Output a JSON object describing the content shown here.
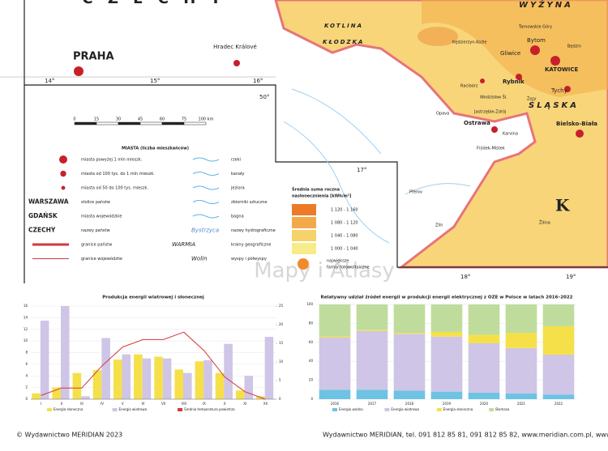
{
  "map": {
    "country_top": "C Z E C H Y",
    "cities": [
      "PRAHA",
      "Hradec Králové",
      "Bytom",
      "Gliwice",
      "KATOWICE",
      "Rybnik",
      "Tychy",
      "Racibórz",
      "Kędzierzyn-Koźle",
      "Opava",
      "Ostrawa",
      "Karvina",
      "Frýdek-Místek",
      "Bielsko-Biała",
      "Wodzisław Śl.",
      "Jastrzębie-Zdrój",
      "Żory",
      "Tarnowskie Góry",
      "Będzin",
      "Přerov",
      "Zlín",
      "Žilina"
    ],
    "regions": [
      "KOTLINA",
      "KŁODZKA",
      "WYŻYNA",
      "ŚLĄSKA",
      "K"
    ],
    "degrees": [
      "14°",
      "15°",
      "16°",
      "50°",
      "17°",
      "18°",
      "19°"
    ],
    "watermark": "Mapy i Atlasy"
  },
  "legend": {
    "scale": [
      "0",
      "15",
      "30",
      "45",
      "60",
      "75",
      "100 km"
    ],
    "cities_title": "MIASTA (liczba mieszkańców)",
    "left": [
      [
        "",
        "miasta powyżej 1 mln mieszk."
      ],
      [
        "",
        "miasta od 100 tys. do 1 mln mieszk."
      ],
      [
        "",
        "miasta od 50 do 100 tys. mieszk."
      ],
      [
        "WARSZAWA",
        "stolice państw"
      ],
      [
        "GDAŃSK",
        "miasta wojewódzkie"
      ],
      [
        "CZECHY",
        "nazwy państw"
      ],
      [
        "",
        "granice państw"
      ],
      [
        "",
        "granice województw"
      ]
    ],
    "right": [
      [
        "",
        "rzeki"
      ],
      [
        "",
        "kanały"
      ],
      [
        "",
        "jeziora"
      ],
      [
        "",
        "zbiorniki sztuczne"
      ],
      [
        "",
        "bagna"
      ],
      [
        "Bystrzyca",
        "nazwy hydrograficzne"
      ],
      [
        "WARMIA",
        "krainy geograficzne"
      ],
      [
        "Wolin",
        "wyspy i półwyspy"
      ]
    ],
    "solar_title": [
      "Średnia suma roczna",
      "nasłonecznienia [kWh/m²]"
    ],
    "solar_classes": [
      "1 120 - 1 160",
      "1 080 - 1 120",
      "1 040 - 1 080",
      "1 000 - 1 040"
    ],
    "farms": [
      "największe",
      "farmy fotowoltaiczne"
    ]
  },
  "chart_data": [
    {
      "type": "bar",
      "title": "Produkcja energii wiatrowej i słonecznej",
      "categories": [
        "I",
        "II",
        "III",
        "IV",
        "V",
        "VI",
        "VII",
        "VIII",
        "IX",
        "X",
        "XI",
        "XII"
      ],
      "series": [
        {
          "name": "Energia słoneczna",
          "color": "#f5e04a",
          "values": [
            1,
            2,
            4.5,
            5,
            6.8,
            7.7,
            7.3,
            5.1,
            6.5,
            4.5,
            1.5,
            0.5
          ]
        },
        {
          "name": "Energia wiatrowa",
          "color": "#cfc5e6",
          "values": [
            13.5,
            16,
            0.5,
            10.5,
            7.7,
            7,
            7,
            4.5,
            6.7,
            9.5,
            4,
            10.7
          ]
        },
        {
          "name": "Średnia temperatura powietrza",
          "color": "#d23a3a",
          "axis": "y2",
          "values": [
            1,
            3,
            3,
            9,
            14,
            16,
            16,
            18,
            13,
            6,
            2,
            0
          ]
        }
      ],
      "ylim": [
        0,
        16
      ],
      "yticks": [
        0,
        2,
        4,
        6,
        8,
        10,
        12,
        14,
        16
      ],
      "y2lim": [
        0,
        25
      ],
      "y2ticks": [
        0,
        5,
        10,
        15,
        20,
        25
      ]
    },
    {
      "type": "stacked_bar",
      "title": "Relatywny udział źródeł energii w produkcji energii elektrycznej z OZE w Polsce w latach 2016–2022",
      "categories": [
        "2016",
        "2017",
        "2018",
        "2019",
        "2020",
        "2021",
        "2022"
      ],
      "series": [
        {
          "name": "Energia wodna",
          "color": "#6ec3e4",
          "values": [
            10,
            10,
            9,
            8,
            7,
            6,
            5
          ]
        },
        {
          "name": "Energia wiatrowa",
          "color": "#cfc5e6",
          "values": [
            55,
            62,
            60,
            58,
            52,
            48,
            42
          ]
        },
        {
          "name": "Energia słoneczna",
          "color": "#f5e04a",
          "values": [
            1,
            1,
            1,
            5,
            9,
            16,
            30
          ]
        },
        {
          "name": "Biomasa",
          "color": "#bfdc9c",
          "values": [
            34,
            27,
            30,
            29,
            32,
            30,
            23
          ]
        }
      ],
      "ylim": [
        0,
        100
      ],
      "yticks": [
        0,
        20,
        40,
        60,
        80,
        100
      ]
    }
  ],
  "footer": {
    "left": "© Wydawnictwo MERIDIAN 2023",
    "right": "Wydawnictwo MERIDIAN, tel. 091 812 85 81, 091 812 85 82, www.meridian.com.pl, www."
  }
}
